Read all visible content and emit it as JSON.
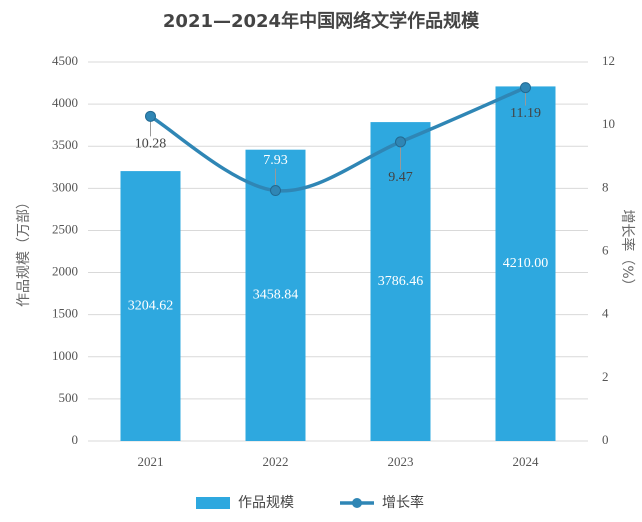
{
  "chart_data": {
    "type": "bar",
    "title": "2021—2024年中国网络文学作品规模",
    "categories": [
      "2021",
      "2022",
      "2023",
      "2024"
    ],
    "series": [
      {
        "name": "作品规模",
        "type": "bar",
        "color": "#2ea8df",
        "values": [
          3204.62,
          3458.84,
          3786.46,
          4210
        ],
        "value_labels": [
          "3204.62",
          "3458.84",
          "3786.46",
          "4210.00"
        ]
      },
      {
        "name": "增长率",
        "type": "line",
        "axis": "y2",
        "color": "#2f86b5",
        "values": [
          10.28,
          7.93,
          9.47,
          11.19
        ]
      }
    ],
    "ylabel": "作品规模（万部）",
    "y2label": "增长率（%）",
    "ylim": [
      0,
      4500
    ],
    "yticks": [
      0,
      500,
      1000,
      1500,
      2000,
      2500,
      3000,
      3500,
      4000,
      4500
    ],
    "y2lim": [
      0,
      12
    ],
    "y2ticks": [
      0,
      2,
      4,
      6,
      8,
      10,
      12
    ],
    "grid": true,
    "legend": "bottom"
  }
}
